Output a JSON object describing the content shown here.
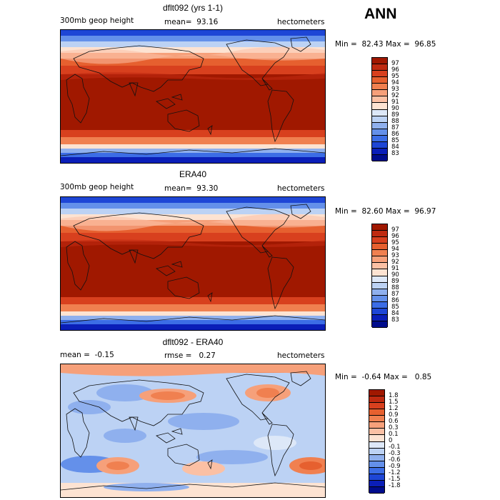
{
  "season": "ANN",
  "panels": [
    {
      "title": "dflt092 (yrs 1-1)",
      "variable": "300mb geop height",
      "stat1": "mean=  93.16",
      "stat2": "",
      "units": "hectometers",
      "minmax": "Min =  82.43 Max =  96.85",
      "colorbar_labels": [
        "97",
        "96",
        "95",
        "94",
        "93",
        "92",
        "91",
        "90",
        "89",
        "88",
        "87",
        "86",
        "85",
        "84",
        "83"
      ],
      "colorbar_colors": [
        "#a01800",
        "#bf2a10",
        "#d8401e",
        "#e6602f",
        "#f08050",
        "#f6a07a",
        "#fbc0a4",
        "#fde3d2",
        "#dde8f8",
        "#bcd2f4",
        "#8fb0ee",
        "#6490ea",
        "#3c6de6",
        "#1e46d6",
        "#0a1eb8",
        "#000c8c"
      ],
      "chart_data": {
        "type": "heatmap",
        "field": "300mb geopotential height (model)",
        "mean": 93.16,
        "min": 82.43,
        "max": 96.85,
        "levels": [
          83,
          84,
          85,
          86,
          87,
          88,
          89,
          90,
          91,
          92,
          93,
          94,
          95,
          96,
          97
        ]
      }
    },
    {
      "title": "ERA40",
      "variable": "300mb geop height",
      "stat1": "mean=  93.30",
      "stat2": "",
      "units": "hectometers",
      "minmax": "Min =  82.60 Max =  96.97",
      "colorbar_labels": [
        "97",
        "96",
        "95",
        "94",
        "93",
        "92",
        "91",
        "90",
        "89",
        "88",
        "87",
        "86",
        "85",
        "84",
        "83"
      ],
      "colorbar_colors": [
        "#a01800",
        "#bf2a10",
        "#d8401e",
        "#e6602f",
        "#f08050",
        "#f6a07a",
        "#fbc0a4",
        "#fde3d2",
        "#dde8f8",
        "#bcd2f4",
        "#8fb0ee",
        "#6490ea",
        "#3c6de6",
        "#1e46d6",
        "#0a1eb8",
        "#000c8c"
      ],
      "chart_data": {
        "type": "heatmap",
        "field": "300mb geopotential height (ERA40)",
        "mean": 93.3,
        "min": 82.6,
        "max": 96.97,
        "levels": [
          83,
          84,
          85,
          86,
          87,
          88,
          89,
          90,
          91,
          92,
          93,
          94,
          95,
          96,
          97
        ]
      }
    },
    {
      "title": "dflt092 - ERA40",
      "variable": "mean =  -0.15",
      "stat1": "rmse =   0.27",
      "stat2": "",
      "units": "hectometers",
      "minmax": "Min =  -0.64 Max =   0.85",
      "colorbar_labels": [
        "1.8",
        "1.5",
        "1.2",
        "0.9",
        "0.6",
        "0.3",
        "0.1",
        "0",
        "-0.1",
        "-0.3",
        "-0.6",
        "-0.9",
        "-1.2",
        "-1.5",
        "-1.8"
      ],
      "colorbar_colors": [
        "#a01800",
        "#bf2a10",
        "#d8401e",
        "#e6602f",
        "#f08050",
        "#f6a07a",
        "#fbc0a4",
        "#fde3d2",
        "#dde8f8",
        "#bcd2f4",
        "#8fb0ee",
        "#6490ea",
        "#3c6de6",
        "#1e46d6",
        "#0a1eb8",
        "#000c8c"
      ],
      "chart_data": {
        "type": "heatmap",
        "field": "difference dflt092 - ERA40",
        "mean": -0.15,
        "rmse": 0.27,
        "min": -0.64,
        "max": 0.85,
        "levels": [
          -1.8,
          -1.5,
          -1.2,
          -0.9,
          -0.6,
          -0.3,
          -0.1,
          0,
          0.1,
          0.3,
          0.6,
          0.9,
          1.2,
          1.5,
          1.8
        ]
      }
    }
  ]
}
